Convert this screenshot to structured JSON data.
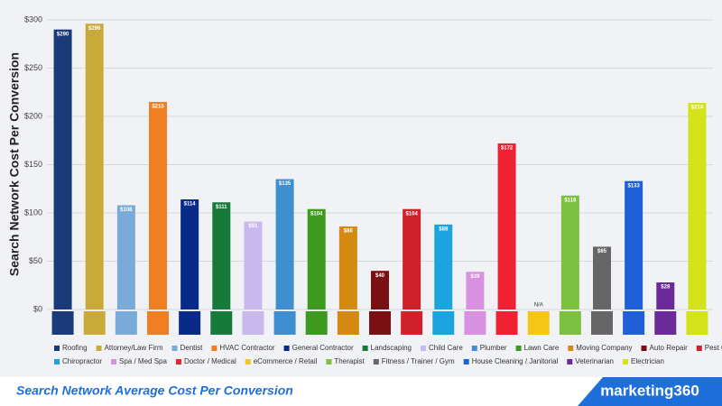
{
  "chart_data": {
    "type": "bar",
    "y_label": "Search Network Cost Per Conversion",
    "categories": [
      "Roofing",
      "Attorney/Law Firm",
      "Dentist",
      "HVAC Contractor",
      "General Contractor",
      "Landscaping",
      "Child Care",
      "Plumber",
      "Lawn Care",
      "Moving Company",
      "Auto Repair",
      "Pest Control",
      "Chiropractor",
      "Spa / Med Spa",
      "Doctor / Medical",
      "eCommerce / Retail",
      "Therapist",
      "Fitness / Trainer / Gym",
      "House Cleaning / Janitorial",
      "Veterinarian",
      "Electrician"
    ],
    "values": [
      290,
      296,
      108,
      215,
      114,
      111,
      91,
      135,
      104,
      86,
      40,
      104,
      88,
      39,
      172,
      null,
      118,
      65,
      133,
      28,
      214
    ],
    "value_labels": [
      "$290",
      "$296",
      "$108",
      "$215",
      "$114",
      "$111",
      "$91",
      "$135",
      "$104",
      "$86",
      "$40",
      "$104",
      "$88",
      "$39",
      "$172",
      "N/A",
      "$118",
      "$65",
      "$133",
      "$28",
      "$214"
    ],
    "colors": [
      "#1a3a7a",
      "#c9a93a",
      "#7aaad8",
      "#f07f22",
      "#0a2a8a",
      "#157a3a",
      "#c9b8ee",
      "#3f8fd0",
      "#3c9a1f",
      "#d48a10",
      "#7a0f14",
      "#d0202a",
      "#1aa5e0",
      "#d890e0",
      "#ee2233",
      "#f5c518",
      "#7cc040",
      "#666666",
      "#1f5fd8",
      "#6a2a9a",
      "#d4e21a"
    ],
    "ylim": [
      0,
      300
    ],
    "yticks": [
      {
        "value": 0,
        "label": "$0"
      },
      {
        "value": 50,
        "label": "$50"
      },
      {
        "value": 100,
        "label": "$100"
      },
      {
        "value": 150,
        "label": "$150"
      },
      {
        "value": 200,
        "label": "$200"
      },
      {
        "value": 250,
        "label": "$250"
      },
      {
        "value": 300,
        "label": "$300"
      }
    ],
    "grid": true
  },
  "footer": {
    "caption": "Search Network Average Cost Per Conversion",
    "brand": "marketing360"
  }
}
